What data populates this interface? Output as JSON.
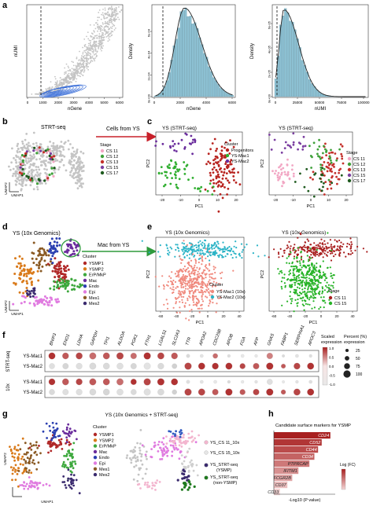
{
  "panel_letters": [
    "a",
    "b",
    "c",
    "d",
    "e",
    "f",
    "g",
    "h"
  ],
  "colors": {
    "grey": "#c4c4c4",
    "blue": "#3b6fd8",
    "hist": "#8cc0d2",
    "red_arrow": "#c8202a",
    "green_arrow": "#2e9a3c",
    "progenitors": "#b8231f",
    "ys_mac1": "#2fae2f",
    "ys_mac2": "#6a2c9c",
    "cs11": "#f2a7c4",
    "cs12": "#3fa03a",
    "cs13": "#c4302b",
    "cs15": "#7b3fa0",
    "cs17": "#1e5a1e",
    "cyan": "#2ab3c6",
    "salmon": "#f08a7e",
    "dark_red": "#a81f1f",
    "bright_green": "#27b327",
    "cl_ysmp1": "#b02828",
    "cl_ysmp2": "#d97a1a",
    "cl_erp": "#3da83d",
    "cl_mac": "#6a2c9c",
    "cl_endo": "#2b3fb0",
    "cl_epi": "#e07be0",
    "cl_mes1": "#8a5a24",
    "cl_mes2": "#3a2a6e"
  },
  "a": {
    "scatter": {
      "xlabel": "nGene",
      "ylabel": "nUMI",
      "xticks": [
        "0",
        "1000",
        "2000",
        "3000",
        "4000",
        "5000",
        "6000"
      ]
    },
    "hist1": {
      "xlabel": "nGene",
      "ylabel": "Density",
      "xticks": [
        "0",
        "2000",
        "4000",
        "6000"
      ],
      "yticks": [
        "0e+00",
        "2e-04",
        "4e-04",
        "6e-04"
      ]
    },
    "hist2": {
      "xlabel": "nUMI",
      "ylabel": "Density",
      "xticks": [
        "0",
        "25000",
        "50000",
        "75000",
        "100000"
      ],
      "yticks": [
        "0e+00",
        "2e-05",
        "4e-05",
        "6e-05"
      ]
    }
  },
  "b": {
    "title": "STRT-seq",
    "arrow_label": "Cells from YS",
    "xlabel": "UMAP1",
    "ylabel": "UMAP2",
    "legend_title": "Stage",
    "legend": [
      "CS 11",
      "CS 12",
      "CS 13",
      "CS 15",
      "CS 17"
    ]
  },
  "c": {
    "left_title": "YS (STRT-seq)",
    "right_title": "YS (STRT-seq)",
    "xlabel": "PC1",
    "ylabel": "PC2",
    "xticks": [
      "-20",
      "-10",
      "0",
      "10",
      "20"
    ],
    "yticks": [
      "10",
      "0",
      "-10",
      "-20"
    ],
    "cluster_title": "Cluster",
    "cluster_legend": [
      "Progenitors",
      "YS-Mac1",
      "YS-Mac2"
    ],
    "stage_title": "Stage",
    "stage_legend": [
      "CS 11",
      "CS 12",
      "CS 13",
      "CS 15",
      "CS 17"
    ]
  },
  "d": {
    "title": "YS (10x Genomics)",
    "arrow_label": "Mac from YS",
    "xlabel": "UMAP1",
    "ylabel": "UMAP2",
    "cluster_title": "Cluster",
    "cluster_legend": [
      "YSMP1",
      "YSMP2",
      "ErP/MkP",
      "Mac",
      "Endo",
      "Epi",
      "Mes1",
      "Mes2"
    ]
  },
  "e": {
    "left_title": "YS (10x Genomics)",
    "right_title": "YS (10x Genomics)",
    "xlabel": "PC1",
    "ylabel": "PC2",
    "xticks": [
      "-60",
      "-40",
      "-20",
      "0",
      "20",
      "40"
    ],
    "cluster_title": "Cluster",
    "cluster_legend": [
      "YS-Mac1 (10x)",
      "YS-Mac2 (10x)"
    ],
    "stage_title": "Stage",
    "stage_legend": [
      "CS 11",
      "CS 15"
    ]
  },
  "f": {
    "genes": [
      "BNIP3",
      "ENO1",
      "LDHA",
      "GAPDH",
      "TPI1",
      "ALDOA",
      "PGK1",
      "FTH1",
      "LGALS1",
      "SLC2A3",
      "TTR",
      "APOA2",
      "CDC25B",
      "APOB",
      "FGA",
      "AFP",
      "GNAS",
      "FABP1",
      "SERPINA1",
      "APOC3"
    ],
    "rows": [
      "YS-Mac1",
      "YS-Mac2",
      "YS-Mac1",
      "YS-Mac2"
    ],
    "groups": [
      "STRT-seq",
      "10x"
    ],
    "legend_scaled": [
      "Scaled",
      "expression"
    ],
    "legend_scaled_ticks": [
      "1.0",
      "0.5",
      "0.0",
      "-0.5",
      "-1.0"
    ],
    "legend_pct": [
      "Percent (%)",
      "expression"
    ],
    "legend_pct_values": [
      "25",
      "50",
      "75",
      "100"
    ],
    "expr": [
      [
        0.9,
        0.7,
        0.8,
        0.6,
        0.7,
        0.8,
        0.6,
        0.9,
        0.8,
        0.7,
        -0.6,
        -0.4,
        0.6,
        -0.5,
        -0.3,
        -0.3,
        0.5,
        -0.6,
        -0.4,
        -0.5
      ],
      [
        -0.5,
        -0.7,
        -0.5,
        -0.6,
        -0.6,
        -0.5,
        -0.7,
        -0.4,
        -0.6,
        -0.8,
        0.8,
        0.9,
        0.9,
        0.9,
        0.8,
        0.7,
        0.9,
        0.7,
        0.8,
        0.9
      ],
      [
        0.9,
        0.7,
        0.8,
        0.7,
        0.7,
        0.6,
        0.9,
        0.8,
        0.9,
        0.9,
        -0.5,
        -0.4,
        -0.3,
        -0.6,
        -0.3,
        -0.4,
        -0.5,
        -0.3,
        -0.4,
        -0.5
      ],
      [
        -0.6,
        -0.5,
        -0.5,
        -0.6,
        -0.7,
        -0.5,
        -0.6,
        -0.5,
        -0.6,
        -0.8,
        0.8,
        0.8,
        0.7,
        0.9,
        0.7,
        0.8,
        0.9,
        0.7,
        0.8,
        0.9
      ]
    ],
    "pct": [
      [
        90,
        85,
        88,
        92,
        90,
        95,
        80,
        95,
        90,
        85,
        30,
        25,
        60,
        20,
        25,
        20,
        80,
        15,
        25,
        20
      ],
      [
        70,
        75,
        80,
        88,
        85,
        85,
        75,
        90,
        80,
        60,
        95,
        90,
        85,
        90,
        70,
        80,
        95,
        50,
        85,
        90
      ],
      [
        85,
        88,
        85,
        92,
        90,
        92,
        75,
        95,
        95,
        90,
        30,
        25,
        25,
        20,
        20,
        20,
        70,
        15,
        20,
        25
      ],
      [
        70,
        75,
        80,
        85,
        85,
        85,
        70,
        90,
        85,
        55,
        95,
        92,
        80,
        95,
        70,
        80,
        95,
        55,
        90,
        92
      ]
    ]
  },
  "g": {
    "title": "YS (10x Genomics + STRT-seq)",
    "xlabel": "UMAP1",
    "ylabel": "UMAP2",
    "cluster_title": "Cluster",
    "cluster_legend": [
      "YSMP1",
      "YSMP2",
      "ErP/MkP",
      "Mac",
      "Endo",
      "Epi",
      "Mes1",
      "Mes2"
    ],
    "right_legend": [
      "YS_CS 11_10x",
      "YS_CS 15_10x",
      "YS_STRT-seq (YSMP)",
      "YS_STRT-seq (non-YSMP)"
    ]
  },
  "h": {
    "title": "Candidate surface markers for YSMP",
    "xlabel": "-Log10 (P value)",
    "legend_title": "Log (FC)",
    "chart_data": {
      "type": "bar",
      "categories": [
        "CD24",
        "CD52",
        "CD44",
        "CD34",
        "PTPRCAP",
        "IFITM1",
        "FCGR2B",
        "CD37",
        "CD33"
      ],
      "values": [
        92,
        78,
        72,
        66,
        58,
        40,
        30,
        22,
        10
      ]
    }
  }
}
